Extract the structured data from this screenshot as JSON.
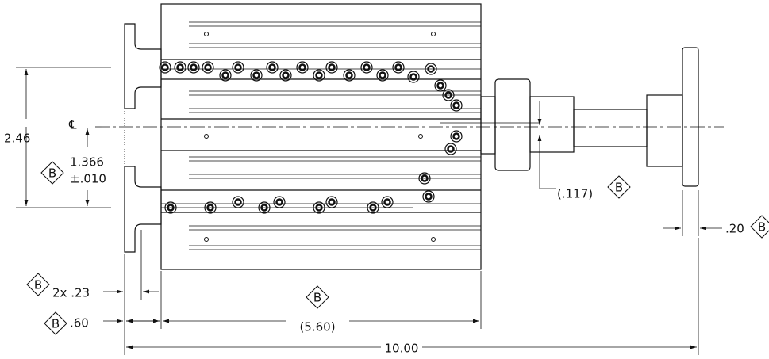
{
  "centerline_symbol": "℄",
  "dimensions": [
    {
      "label": "2.46"
    },
    {
      "label": "1.366",
      "tolerance": "±.010",
      "datum": "B"
    },
    {
      "label": "(.117)",
      "datum": "B"
    },
    {
      "label": ".20",
      "datum": "B"
    },
    {
      "label": "2x .23",
      "datum": "B"
    },
    {
      "label": ".60",
      "datum": "B"
    },
    {
      "label": "(5.60)",
      "datum": "B"
    },
    {
      "label": "10.00"
    }
  ]
}
